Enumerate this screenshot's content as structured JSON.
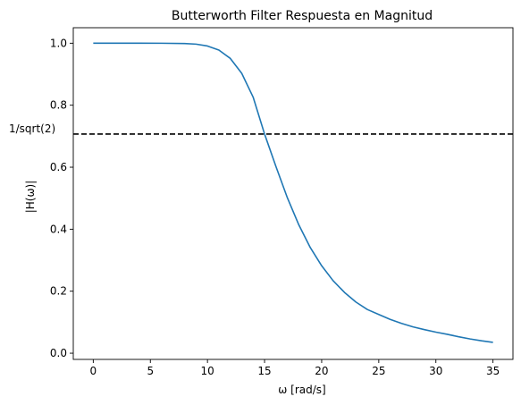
{
  "chart_data": {
    "type": "line",
    "title": "Butterworth Filter Respuesta en Magnitud",
    "xlabel": "ω [rad/s]",
    "ylabel": "|H(ω)|",
    "xlim": [
      -1.75,
      36.75
    ],
    "ylim": [
      -0.02,
      1.05
    ],
    "xticks": [
      0,
      5,
      10,
      15,
      20,
      25,
      30,
      35
    ],
    "yticks": [
      0.0,
      0.2,
      0.4,
      0.6,
      0.8,
      1.0
    ],
    "grid": false,
    "colors": {
      "line": "#1f77b4",
      "reference": "#000000"
    },
    "series": [
      {
        "x": [
          0,
          2,
          4,
          6,
          8,
          9,
          10,
          11,
          12,
          13,
          14,
          15,
          16,
          17,
          18,
          19,
          20,
          21,
          22,
          23,
          24,
          25,
          26,
          27,
          28,
          29,
          30,
          31,
          32,
          33,
          34,
          35
        ],
        "y": [
          1.0,
          1.0,
          1.0,
          0.9999,
          0.999,
          0.997,
          0.991,
          0.978,
          0.951,
          0.903,
          0.826,
          0.707,
          0.602,
          0.501,
          0.414,
          0.341,
          0.282,
          0.234,
          0.196,
          0.165,
          0.141,
          0.125,
          0.109,
          0.096,
          0.085,
          0.076,
          0.068,
          0.061,
          0.053,
          0.046,
          0.04,
          0.035
        ]
      }
    ],
    "reference_line": {
      "y": 0.7071,
      "label": "1/sqrt(2)",
      "style": "dashed"
    }
  }
}
